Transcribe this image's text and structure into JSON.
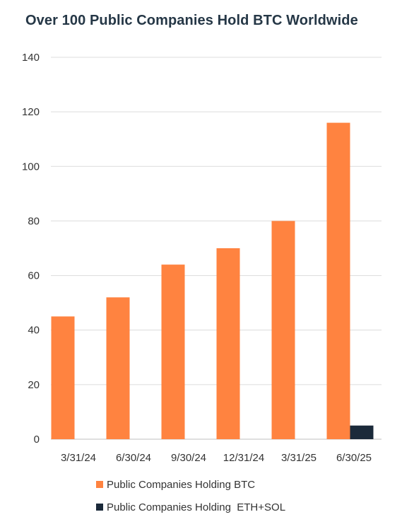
{
  "chart_data": {
    "type": "bar",
    "title": "Over 100 Public Companies Hold BTC Worldwide",
    "categories": [
      "3/31/24",
      "6/30/24",
      "9/30/24",
      "12/31/24",
      "3/31/25",
      "6/30/25"
    ],
    "series": [
      {
        "name": "Public Companies Holding BTC",
        "values": [
          45,
          52,
          64,
          70,
          80,
          116
        ],
        "color": "#FF8340"
      },
      {
        "name": "Public Companies Holding  ETH+SOL",
        "values": [
          null,
          null,
          null,
          null,
          null,
          5
        ],
        "color": "#1B2A3A"
      }
    ],
    "ylim": [
      0,
      140
    ],
    "yticks": [
      0,
      20,
      40,
      60,
      80,
      100,
      120,
      140
    ],
    "grid": true,
    "legend_position": "bottom"
  }
}
